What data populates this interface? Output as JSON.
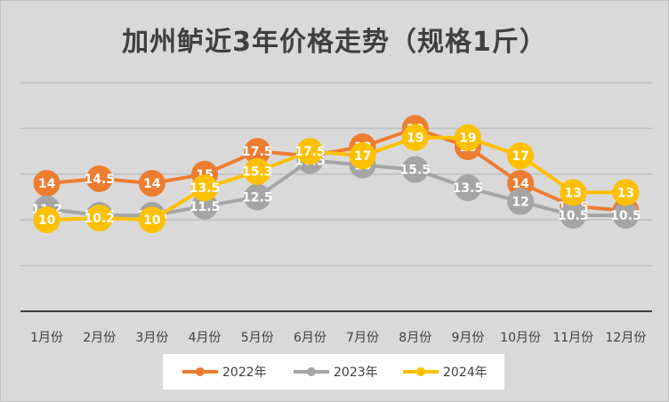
{
  "chart_data": {
    "type": "line",
    "title": "加州鲈近3年价格走势（规格1斤）",
    "categories": [
      "1月份",
      "2月份",
      "3月份",
      "4月份",
      "5月份",
      "6月份",
      "7月份",
      "8月份",
      "9月份",
      "10月份",
      "11月份",
      "12月份"
    ],
    "series": [
      {
        "name": "2022年",
        "color": "#ed7d31",
        "values": [
          14,
          14.5,
          14,
          15,
          17.5,
          17,
          18,
          20,
          18,
          14,
          11.5,
          11
        ]
      },
      {
        "name": "2023年",
        "color": "#a5a5a5",
        "values": [
          11.2,
          10.5,
          10.5,
          11.5,
          12.5,
          16.5,
          16,
          15.5,
          13.5,
          12,
          10.5,
          10.5
        ]
      },
      {
        "name": "2024年",
        "color": "#ffc000",
        "values": [
          10,
          10.2,
          10,
          13.5,
          15.3,
          17.5,
          17,
          19,
          19,
          17,
          13,
          13
        ]
      }
    ],
    "ylim": [
      0,
      25
    ],
    "grid": true,
    "legend": "bottom"
  }
}
